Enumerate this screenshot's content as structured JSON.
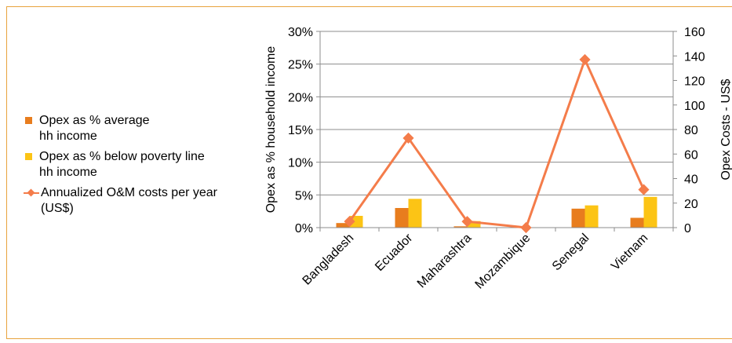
{
  "colors": {
    "frame": "#e8a33d",
    "axis": "#8c8c8c",
    "grid": "#8c8c8c",
    "bar_avg": "#e87d1e",
    "bar_poverty": "#fcc415",
    "line": "#f47c4a"
  },
  "chart_data": {
    "type": "bar",
    "combo": "bar + line (secondary axis)",
    "categories": [
      "Bangladesh",
      "Ecuador",
      "Maharashtra",
      "Mozambique",
      "Senegal",
      "Vietnam"
    ],
    "series": [
      {
        "name": "Opex as % average hh income",
        "type": "bar",
        "axis": "left",
        "values": [
          0.7,
          3.0,
          0.2,
          0.0,
          2.9,
          1.5
        ]
      },
      {
        "name": "Opex as % below poverty line hh income",
        "type": "bar",
        "axis": "left",
        "values": [
          1.8,
          4.4,
          1.0,
          0.0,
          3.4,
          4.7
        ]
      },
      {
        "name": "Annualized O&M costs per year (US$)",
        "type": "line",
        "axis": "right",
        "values": [
          5,
          73,
          5,
          0,
          137,
          31
        ]
      }
    ],
    "ylabel": "Opex as % household income",
    "y2label": "Opex Costs - US$",
    "ylim": [
      0,
      30
    ],
    "y2lim": [
      0,
      160
    ],
    "yticks": [
      "0%",
      "5%",
      "10%",
      "15%",
      "20%",
      "25%",
      "30%"
    ],
    "y2ticks": [
      "0",
      "20",
      "40",
      "60",
      "80",
      "100",
      "120",
      "140",
      "160"
    ],
    "grid": "horizontal",
    "legend_position": "left",
    "legend": [
      {
        "line1": "Opex as % average",
        "line2": "hh income"
      },
      {
        "line1": "Opex as % below poverty line",
        "line2": "hh income"
      },
      {
        "line1": "Annualized O&M costs per year",
        "line2": "(US$)"
      }
    ]
  }
}
